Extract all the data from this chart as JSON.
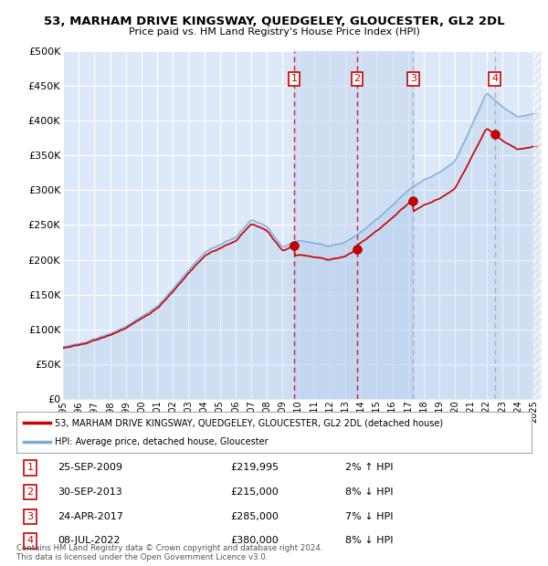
{
  "title": "53, MARHAM DRIVE KINGSWAY, QUEDGELEY, GLOUCESTER, GL2 2DL",
  "subtitle": "Price paid vs. HM Land Registry's House Price Index (HPI)",
  "footer": "Contains HM Land Registry data © Crown copyright and database right 2024.\nThis data is licensed under the Open Government Licence v3.0.",
  "legend_line1": "53, MARHAM DRIVE KINGSWAY, QUEDGELEY, GLOUCESTER, GL2 2DL (detached house)",
  "legend_line2": "HPI: Average price, detached house, Gloucester",
  "transactions": [
    {
      "num": 1,
      "date": "25-SEP-2009",
      "price": "£219,995",
      "hpi_change": "2% ↑ HPI",
      "year": 2009.73
    },
    {
      "num": 2,
      "date": "30-SEP-2013",
      "price": "£215,000",
      "hpi_change": "8% ↓ HPI",
      "year": 2013.75
    },
    {
      "num": 3,
      "date": "24-APR-2017",
      "price": "£285,000",
      "hpi_change": "7% ↓ HPI",
      "year": 2017.32
    },
    {
      "num": 4,
      "date": "08-JUL-2022",
      "price": "£380,000",
      "hpi_change": "8% ↓ HPI",
      "year": 2022.52
    }
  ],
  "transaction_prices": [
    219995,
    215000,
    285000,
    380000
  ],
  "ylim": [
    0,
    500000
  ],
  "yticks": [
    0,
    50000,
    100000,
    150000,
    200000,
    250000,
    300000,
    350000,
    400000,
    450000,
    500000
  ],
  "xlim_start": 1995.0,
  "xlim_end": 2025.5,
  "background_color": "#ffffff",
  "plot_bg_color": "#dde8f8",
  "grid_color": "#ffffff",
  "red_line_color": "#cc0000",
  "blue_line_color": "#7aaddc",
  "shade_color": "#c8d8f0",
  "vline_solid_color": "#cc4444",
  "vline_dashed_color": "#cc8888",
  "marker_color": "#cc0000",
  "box_color": "#cc0000",
  "outer_shade_color": "#e8e8e8"
}
